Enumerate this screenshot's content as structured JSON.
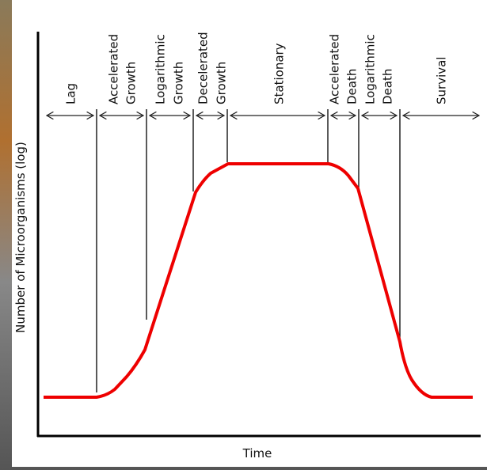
{
  "diagram": {
    "y_axis_label": "Number of Microorganisms (log)",
    "x_axis_label": "Time",
    "phases": [
      {
        "lines": [
          "Lag"
        ]
      },
      {
        "lines": [
          "Accelerated",
          "Growth"
        ]
      },
      {
        "lines": [
          "Logarithmic",
          "Growth"
        ]
      },
      {
        "lines": [
          "Decelerated",
          "Growth"
        ]
      },
      {
        "lines": [
          "Stationary"
        ]
      },
      {
        "lines": [
          "Accelerated",
          "Death"
        ]
      },
      {
        "lines": [
          "Logarithmic",
          "Death"
        ]
      },
      {
        "lines": [
          "Survival"
        ]
      }
    ]
  }
}
